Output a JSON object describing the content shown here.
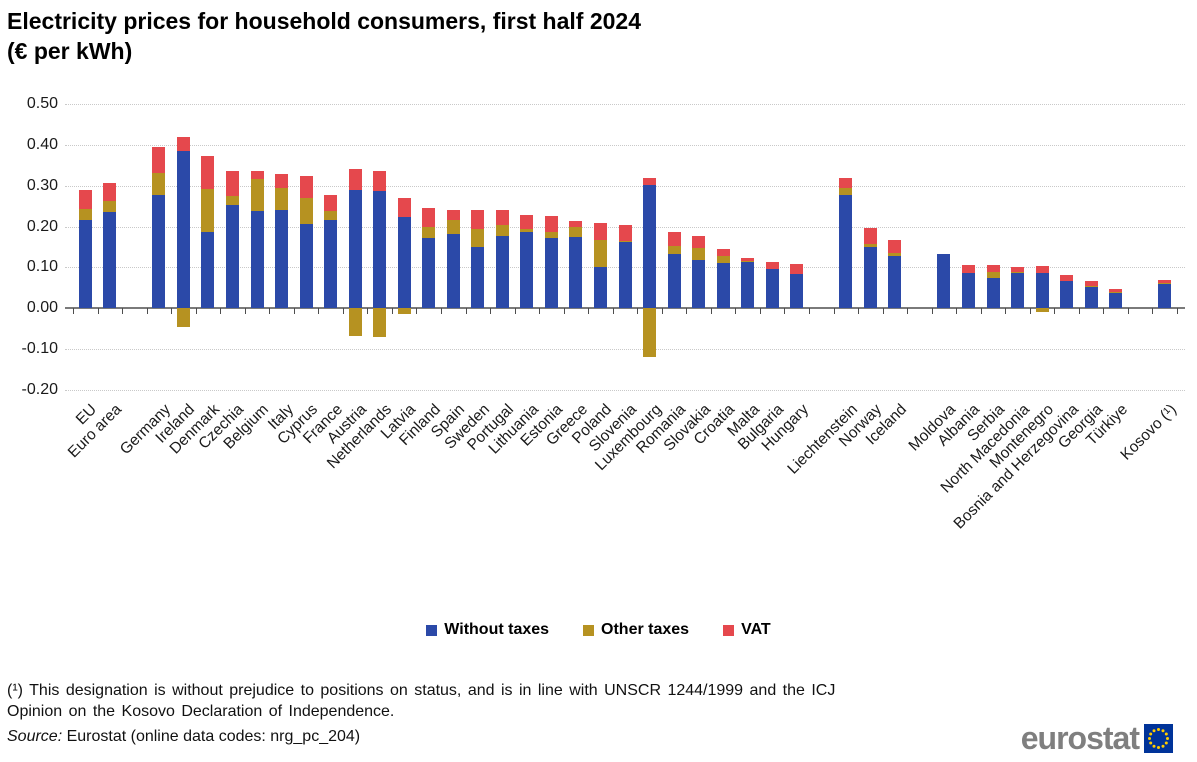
{
  "title": {
    "line1": "Electricity prices for household consumers, first half 2024",
    "line2": "(€ per kWh)"
  },
  "legend": [
    {
      "key": "without_taxes",
      "label": "Without taxes",
      "color": "#2B49A8"
    },
    {
      "key": "other_taxes",
      "label": "Other taxes",
      "color": "#B69221"
    },
    {
      "key": "vat",
      "label": "VAT",
      "color": "#E5484D"
    }
  ],
  "footnote": {
    "line1": "(¹) This designation is without prejudice to positions on status, and is in line with UNSCR 1244/1999 and the ICJ",
    "line2": "Opinion on the Kosovo Declaration of Independence."
  },
  "source": {
    "label": "Source:",
    "text": "Eurostat (online data codes: nrg_pc_204)"
  },
  "logo": {
    "text": "eurostat"
  },
  "chart_data": {
    "type": "bar",
    "stacked": true,
    "title": "Electricity prices for household consumers, first half 2024 (€ per kWh)",
    "ylabel": "€ per kWh",
    "ylim": [
      -0.2,
      0.5
    ],
    "yticks": [
      "0.50",
      "0.40",
      "0.30",
      "0.20",
      "0.10",
      "0.00",
      "-0.10",
      "-0.20"
    ],
    "grid": "horizontal-dotted",
    "legend_position": "bottom",
    "series_keys": [
      "without_taxes",
      "other_taxes",
      "vat"
    ],
    "series_names": [
      "Without taxes",
      "Other taxes",
      "VAT"
    ],
    "groups": [
      [
        {
          "name": "EU",
          "without_taxes": 0.217,
          "other_taxes": 0.026,
          "vat": 0.046
        },
        {
          "name": "Euro area",
          "without_taxes": 0.236,
          "other_taxes": 0.027,
          "vat": 0.043
        }
      ],
      [
        {
          "name": "Germany",
          "without_taxes": 0.277,
          "other_taxes": 0.055,
          "vat": 0.063
        },
        {
          "name": "Ireland",
          "without_taxes": 0.385,
          "other_taxes": -0.045,
          "vat": 0.034
        },
        {
          "name": "Denmark",
          "without_taxes": 0.186,
          "other_taxes": 0.107,
          "vat": 0.079
        },
        {
          "name": "Czechia",
          "without_taxes": 0.253,
          "other_taxes": 0.023,
          "vat": 0.061
        },
        {
          "name": "Belgium",
          "without_taxes": 0.237,
          "other_taxes": 0.08,
          "vat": 0.019
        },
        {
          "name": "Italy",
          "without_taxes": 0.241,
          "other_taxes": 0.053,
          "vat": 0.035
        },
        {
          "name": "Cyprus",
          "without_taxes": 0.206,
          "other_taxes": 0.063,
          "vat": 0.054
        },
        {
          "name": "France",
          "without_taxes": 0.216,
          "other_taxes": 0.021,
          "vat": 0.041
        },
        {
          "name": "Austria",
          "without_taxes": 0.29,
          "other_taxes": -0.068,
          "vat": 0.05
        },
        {
          "name": "Netherlands",
          "without_taxes": 0.286,
          "other_taxes": -0.07,
          "vat": 0.049
        },
        {
          "name": "Latvia",
          "without_taxes": 0.223,
          "other_taxes": -0.014,
          "vat": 0.046
        },
        {
          "name": "Finland",
          "without_taxes": 0.171,
          "other_taxes": 0.027,
          "vat": 0.048
        },
        {
          "name": "Spain",
          "without_taxes": 0.181,
          "other_taxes": 0.034,
          "vat": 0.026
        },
        {
          "name": "Sweden",
          "without_taxes": 0.151,
          "other_taxes": 0.044,
          "vat": 0.045
        },
        {
          "name": "Portugal",
          "without_taxes": 0.178,
          "other_taxes": 0.027,
          "vat": 0.036
        },
        {
          "name": "Lithuania",
          "without_taxes": 0.187,
          "other_taxes": 0.008,
          "vat": 0.034
        },
        {
          "name": "Estonia",
          "without_taxes": 0.172,
          "other_taxes": 0.014,
          "vat": 0.039
        },
        {
          "name": "Greece",
          "without_taxes": 0.175,
          "other_taxes": 0.023,
          "vat": 0.016
        },
        {
          "name": "Poland",
          "without_taxes": 0.101,
          "other_taxes": 0.065,
          "vat": 0.042
        },
        {
          "name": "Slovenia",
          "without_taxes": 0.163,
          "other_taxes": 0.002,
          "vat": 0.04
        },
        {
          "name": "Luxembourg",
          "without_taxes": 0.302,
          "other_taxes": -0.119,
          "vat": 0.016
        },
        {
          "name": "Romania",
          "without_taxes": 0.132,
          "other_taxes": 0.021,
          "vat": 0.033
        },
        {
          "name": "Slovakia",
          "without_taxes": 0.119,
          "other_taxes": 0.029,
          "vat": 0.03
        },
        {
          "name": "Croatia",
          "without_taxes": 0.11,
          "other_taxes": 0.017,
          "vat": 0.019
        },
        {
          "name": "Malta",
          "without_taxes": 0.115,
          "other_taxes": 0.001,
          "vat": 0.008
        },
        {
          "name": "Bulgaria",
          "without_taxes": 0.095,
          "other_taxes": 0.0,
          "vat": 0.019
        },
        {
          "name": "Hungary",
          "without_taxes": 0.085,
          "other_taxes": 0.0,
          "vat": 0.023
        }
      ],
      [
        {
          "name": "Liechtenstein",
          "without_taxes": 0.277,
          "other_taxes": 0.017,
          "vat": 0.025
        },
        {
          "name": "Norway",
          "without_taxes": 0.151,
          "other_taxes": 0.006,
          "vat": 0.039
        },
        {
          "name": "Iceland",
          "without_taxes": 0.128,
          "other_taxes": 0.007,
          "vat": 0.033
        }
      ],
      [
        {
          "name": "Moldova",
          "without_taxes": 0.133,
          "other_taxes": 0.0,
          "vat": 0.0
        },
        {
          "name": "Albania",
          "without_taxes": 0.087,
          "other_taxes": 0.0,
          "vat": 0.02
        },
        {
          "name": "Serbia",
          "without_taxes": 0.073,
          "other_taxes": 0.016,
          "vat": 0.016
        },
        {
          "name": "North Macedonia",
          "without_taxes": 0.087,
          "other_taxes": 0.002,
          "vat": 0.012
        },
        {
          "name": "Montenegro",
          "without_taxes": 0.086,
          "other_taxes": -0.008,
          "vat": 0.017
        },
        {
          "name": "Bosnia and Herzegovina",
          "without_taxes": 0.067,
          "other_taxes": 0.0,
          "vat": 0.014
        },
        {
          "name": "Georgia",
          "without_taxes": 0.053,
          "other_taxes": 0.001,
          "vat": 0.013
        },
        {
          "name": "Türkiye",
          "without_taxes": 0.039,
          "other_taxes": 0.001,
          "vat": 0.008
        }
      ],
      [
        {
          "name": "Kosovo (¹)",
          "without_taxes": 0.059,
          "other_taxes": 0.002,
          "vat": 0.008
        }
      ]
    ]
  }
}
